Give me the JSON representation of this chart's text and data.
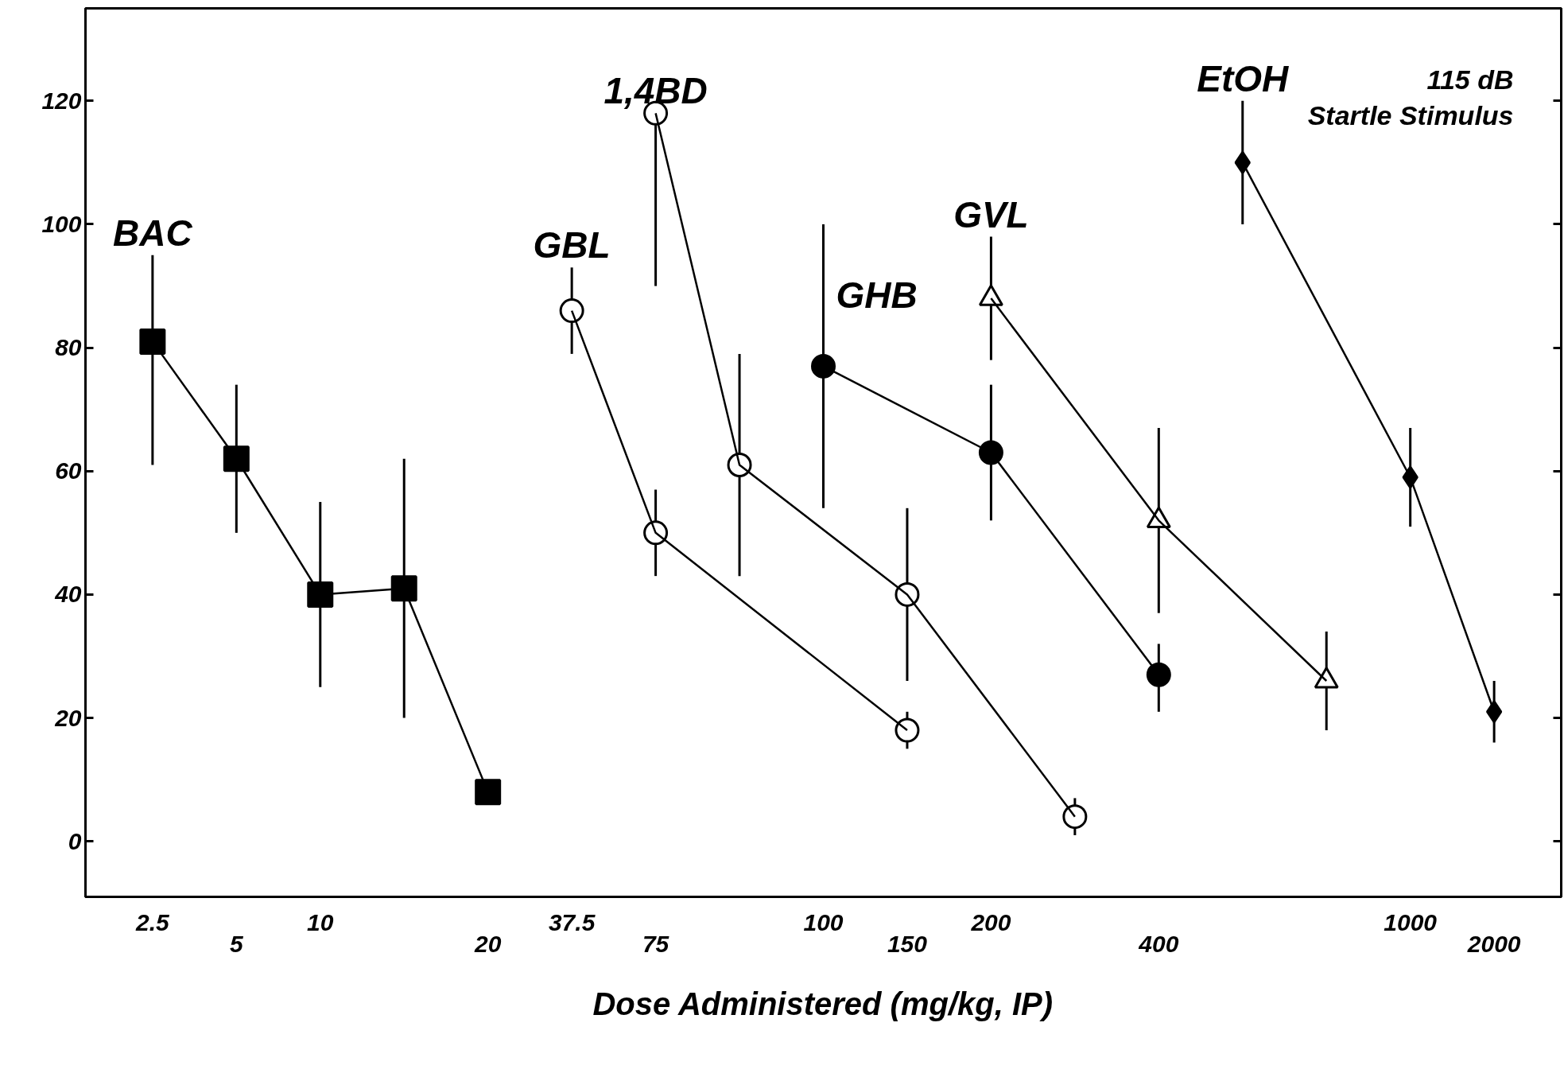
{
  "chart_data": {
    "type": "line",
    "xlabel": "Dose Administered (mg/kg, IP)",
    "annotations": [
      "115 dB\nStartle Stimulus"
    ],
    "categories": [
      "2.5",
      "5",
      "10",
      null,
      "20",
      "37.5",
      "75",
      null,
      "100",
      "150",
      "200",
      null,
      "400",
      null,
      null,
      "1000",
      "2000"
    ],
    "ylim": [
      -9,
      135
    ],
    "yticks": [
      0,
      20,
      40,
      60,
      80,
      100,
      120
    ],
    "grid": false,
    "series": [
      {
        "name": "BAC",
        "color": "#000000",
        "marker": "square",
        "values": [
          81,
          62,
          40,
          41,
          8,
          null,
          null,
          null,
          null,
          null,
          null,
          null,
          null,
          null,
          null,
          null,
          null
        ],
        "errors": [
          [
            61,
            95
          ],
          [
            50,
            74
          ],
          [
            25,
            55
          ],
          [
            20,
            62
          ],
          null,
          null,
          null,
          null,
          null,
          null,
          null,
          null,
          null,
          null,
          null,
          null,
          null
        ]
      },
      {
        "name": "GBL",
        "color": "#000000",
        "colors": [
          "#ffffff",
          "#ffffff",
          "#ffffff",
          "#ffffff",
          "#ffffff",
          "#ffffff",
          "#ffffff",
          "#ffffff",
          "#ffffff",
          "#ffffff",
          "#ffffff",
          "#ffffff",
          "#ffffff",
          "#ffffff",
          "#ffffff",
          "#ffffff",
          "#ffffff"
        ],
        "marker": "circle",
        "values": [
          null,
          null,
          null,
          null,
          null,
          86,
          50,
          null,
          null,
          18,
          null,
          null,
          null,
          null,
          null,
          null,
          null
        ],
        "errors": [
          null,
          null,
          null,
          null,
          null,
          [
            79,
            93
          ],
          [
            43,
            57
          ],
          null,
          null,
          [
            15,
            21
          ],
          null,
          null,
          null,
          null,
          null,
          null,
          null
        ]
      },
      {
        "name": "1,4BD",
        "color": "#000000",
        "colors": [
          "#ffffff",
          "#ffffff",
          "#ffffff",
          "#ffffff",
          "#ffffff",
          "#ffffff",
          "#ffffff",
          "#ffffff",
          "#ffffff",
          "#ffffff",
          "#ffffff",
          "#ffffff",
          "#ffffff",
          "#ffffff",
          "#ffffff",
          "#ffffff",
          "#ffffff"
        ],
        "marker": "circle",
        "values": [
          null,
          null,
          null,
          null,
          null,
          null,
          118,
          61,
          null,
          40,
          null,
          4,
          null,
          null,
          null,
          null,
          null
        ],
        "errors": [
          null,
          null,
          null,
          null,
          null,
          null,
          [
            90,
            118
          ],
          [
            43,
            79
          ],
          null,
          [
            26,
            54
          ],
          null,
          [
            1,
            7
          ],
          null,
          null,
          null,
          null,
          null
        ]
      },
      {
        "name": "GHB",
        "color": "#000000",
        "marker": "circle",
        "values": [
          null,
          null,
          null,
          null,
          null,
          null,
          null,
          null,
          77,
          null,
          63,
          null,
          27,
          null,
          null,
          null,
          null
        ],
        "errors": [
          null,
          null,
          null,
          null,
          null,
          null,
          null,
          null,
          [
            54,
            100
          ],
          null,
          [
            52,
            74
          ],
          null,
          [
            21,
            32
          ],
          null,
          null,
          null,
          null
        ]
      },
      {
        "name": "GVL",
        "color": "#000000",
        "colors": [
          "#ffffff",
          "#ffffff",
          "#ffffff",
          "#ffffff",
          "#ffffff",
          "#ffffff",
          "#ffffff",
          "#ffffff",
          "#ffffff",
          "#ffffff",
          "#ffffff",
          "#ffffff",
          "#ffffff",
          "#ffffff",
          "#ffffff",
          "#ffffff",
          "#ffffff"
        ],
        "marker": "triangle",
        "values": [
          null,
          null,
          null,
          null,
          null,
          null,
          null,
          null,
          null,
          null,
          88,
          null,
          52,
          null,
          26,
          null,
          null
        ],
        "errors": [
          null,
          null,
          null,
          null,
          null,
          null,
          null,
          null,
          null,
          null,
          [
            78,
            98
          ],
          null,
          [
            37,
            67
          ],
          null,
          [
            18,
            34
          ],
          null,
          null
        ]
      },
      {
        "name": "EtOH",
        "color": "#000000",
        "marker": "diamond",
        "values": [
          null,
          null,
          null,
          null,
          null,
          null,
          null,
          null,
          null,
          null,
          null,
          null,
          null,
          110,
          null,
          59,
          21
        ],
        "errors": [
          null,
          null,
          null,
          null,
          null,
          null,
          null,
          null,
          null,
          null,
          null,
          null,
          null,
          [
            100,
            120
          ],
          null,
          [
            51,
            67
          ],
          [
            16,
            26
          ]
        ]
      }
    ]
  }
}
